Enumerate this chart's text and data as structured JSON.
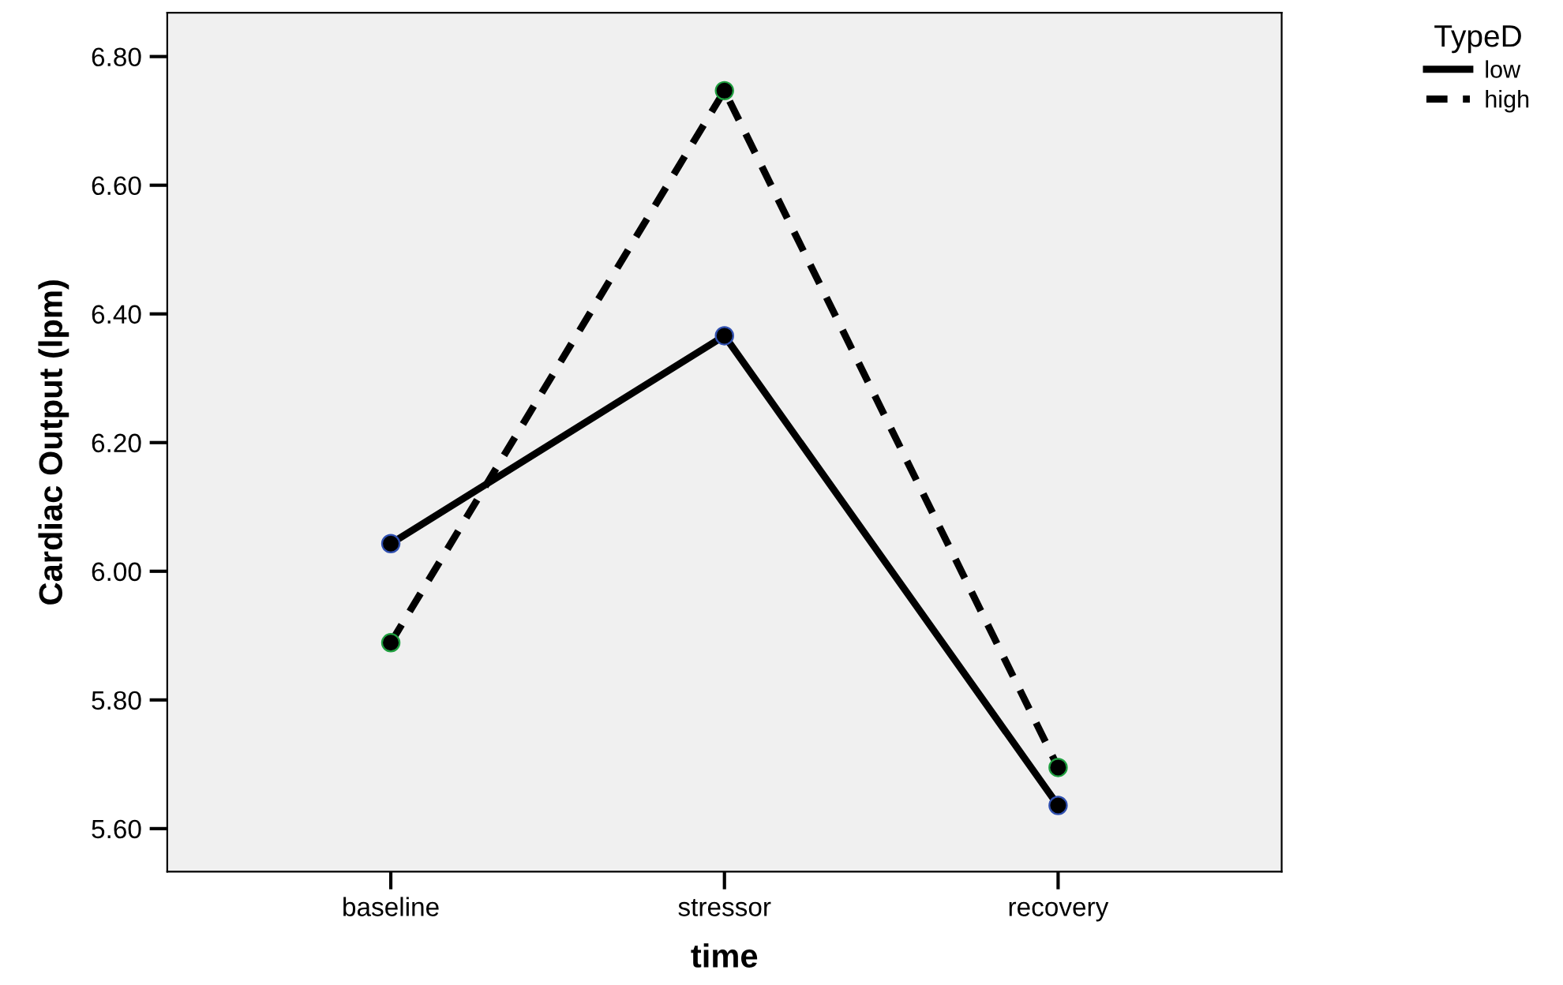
{
  "chart_data": {
    "type": "line",
    "xlabel": "time",
    "ylabel": "Cardiac Output (lpm)",
    "legend_title": "TypeD",
    "categories": [
      "baseline",
      "stressor",
      "recovery"
    ],
    "series": [
      {
        "name": "low",
        "color": "#000000",
        "values": [
          6.043,
          6.366,
          5.636
        ],
        "line_style": "solid"
      },
      {
        "name": "high",
        "color": "#000000",
        "values": [
          5.889,
          6.747,
          5.695
        ],
        "line_style": "dashed"
      }
    ],
    "ylim": [
      5.533,
      6.868
    ],
    "yticks": [
      {
        "value": 5.6,
        "label": "5.60"
      },
      {
        "value": 5.8,
        "label": "5.80"
      },
      {
        "value": 6.0,
        "label": "6.00"
      },
      {
        "value": 6.2,
        "label": "6.20"
      },
      {
        "value": 6.4,
        "label": "6.40"
      },
      {
        "value": 6.6,
        "label": "6.60"
      },
      {
        "value": 6.8,
        "label": "6.80"
      }
    ],
    "marker": "circle",
    "grid": false,
    "legend": "top right"
  }
}
